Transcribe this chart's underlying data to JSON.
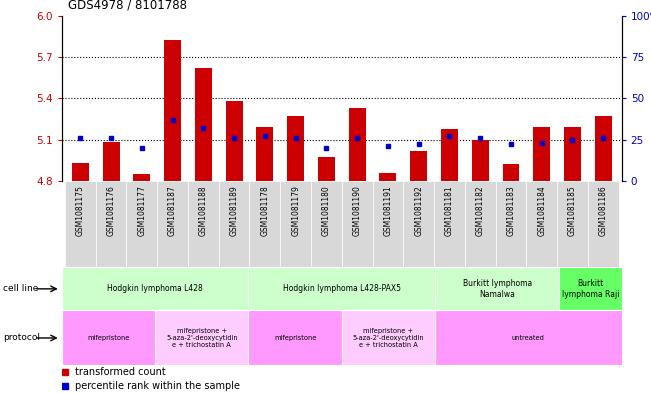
{
  "title": "GDS4978 / 8101788",
  "samples": [
    "GSM1081175",
    "GSM1081176",
    "GSM1081177",
    "GSM1081187",
    "GSM1081188",
    "GSM1081189",
    "GSM1081178",
    "GSM1081179",
    "GSM1081180",
    "GSM1081190",
    "GSM1081191",
    "GSM1081192",
    "GSM1081181",
    "GSM1081182",
    "GSM1081183",
    "GSM1081184",
    "GSM1081185",
    "GSM1081186"
  ],
  "transformed_count": [
    4.93,
    5.08,
    4.85,
    5.82,
    5.62,
    5.38,
    5.19,
    5.27,
    4.97,
    5.33,
    4.86,
    5.02,
    5.18,
    5.1,
    4.92,
    5.19,
    5.19,
    5.27
  ],
  "percentile_rank": [
    26,
    26,
    20,
    37,
    32,
    26,
    27,
    26,
    20,
    26,
    21,
    22,
    27,
    26,
    22,
    23,
    25,
    26
  ],
  "base_value": 4.8,
  "ylim_left": [
    4.8,
    6.0
  ],
  "ylim_right": [
    0,
    100
  ],
  "yticks_left": [
    4.8,
    5.1,
    5.4,
    5.7,
    6.0
  ],
  "yticks_right": [
    0,
    25,
    50,
    75,
    100
  ],
  "ytick_labels_right": [
    "0",
    "25",
    "50",
    "75",
    "100%"
  ],
  "hlines": [
    5.1,
    5.4,
    5.7
  ],
  "bar_color": "#cc0000",
  "dot_color": "#0000cc",
  "xtick_bg": "#d0d0d0",
  "cell_line_groups": [
    {
      "label": "Hodgkin lymphoma L428",
      "start": 0,
      "end": 5,
      "color": "#ccffcc"
    },
    {
      "label": "Hodgkin lymphoma L428-PAX5",
      "start": 6,
      "end": 11,
      "color": "#ccffcc"
    },
    {
      "label": "Burkitt lymphoma\nNamalwa",
      "start": 12,
      "end": 15,
      "color": "#ccffcc"
    },
    {
      "label": "Burkitt\nlymphoma Raji",
      "start": 16,
      "end": 17,
      "color": "#66ff66"
    }
  ],
  "protocol_groups": [
    {
      "label": "mifepristone",
      "start": 0,
      "end": 2,
      "color": "#ff99ff"
    },
    {
      "label": "mifepristone +\n5-aza-2'-deoxycytidin\ne + trichostatin A",
      "start": 3,
      "end": 5,
      "color": "#ffccff"
    },
    {
      "label": "mifepristone",
      "start": 6,
      "end": 8,
      "color": "#ff99ff"
    },
    {
      "label": "mifepristone +\n5-aza-2'-deoxycytidin\ne + trichostatin A",
      "start": 9,
      "end": 11,
      "color": "#ffccff"
    },
    {
      "label": "untreated",
      "start": 12,
      "end": 17,
      "color": "#ff99ff"
    }
  ],
  "legend_items": [
    {
      "label": "transformed count",
      "color": "#cc0000"
    },
    {
      "label": "percentile rank within the sample",
      "color": "#0000cc"
    }
  ]
}
